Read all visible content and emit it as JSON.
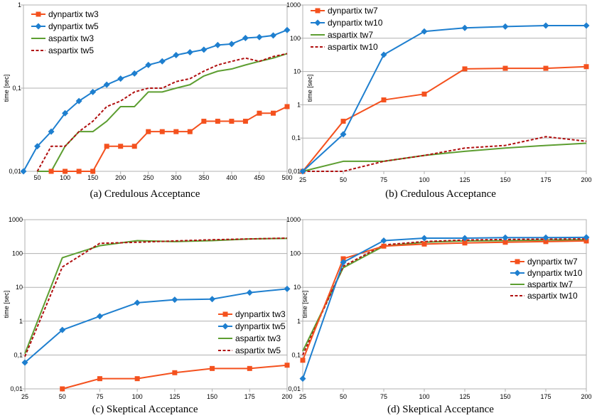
{
  "colors": {
    "dyn_a": "#f4511e",
    "dyn_b": "#1e7fcf",
    "asp_a": "#5d9e31",
    "asp_b": "#b00f0f"
  },
  "chart_data": [
    {
      "type": "line",
      "caption": "(a)  Credulous Acceptance",
      "ylabel": "time [sec]",
      "yscale": "log",
      "ylim": [
        0.01,
        1
      ],
      "yticks": [
        "0,01",
        "0,1",
        "1"
      ],
      "xlim": [
        25,
        500
      ],
      "xticks": [
        "50",
        "100",
        "150",
        "200",
        "250",
        "300",
        "350",
        "400",
        "450",
        "500"
      ],
      "legend_position": "top-left",
      "series": [
        {
          "name": "dynpartix tw3",
          "style": "square",
          "color": "#f4511e",
          "x": [
            75,
            100,
            125,
            150,
            175,
            200,
            225,
            250,
            275,
            300,
            325,
            350,
            375,
            400,
            425,
            450,
            475,
            500
          ],
          "y": [
            0.01,
            0.01,
            0.01,
            0.01,
            0.02,
            0.02,
            0.02,
            0.03,
            0.03,
            0.03,
            0.03,
            0.04,
            0.04,
            0.04,
            0.04,
            0.05,
            0.05,
            0.06
          ]
        },
        {
          "name": "dynpartix tw5",
          "style": "diamond",
          "color": "#1e7fcf",
          "x": [
            25,
            50,
            75,
            100,
            125,
            150,
            175,
            200,
            225,
            250,
            275,
            300,
            325,
            350,
            375,
            400,
            425,
            450,
            475,
            500
          ],
          "y": [
            0.01,
            0.02,
            0.03,
            0.05,
            0.07,
            0.09,
            0.11,
            0.13,
            0.15,
            0.19,
            0.21,
            0.25,
            0.27,
            0.29,
            0.33,
            0.34,
            0.4,
            0.41,
            0.43,
            0.5
          ]
        },
        {
          "name": "aspartix tw3",
          "style": "solid",
          "color": "#5d9e31",
          "x": [
            50,
            75,
            100,
            125,
            150,
            175,
            200,
            225,
            250,
            275,
            300,
            325,
            350,
            375,
            400,
            425,
            450,
            475,
            500
          ],
          "y": [
            0.01,
            0.01,
            0.02,
            0.03,
            0.03,
            0.04,
            0.06,
            0.06,
            0.09,
            0.09,
            0.1,
            0.11,
            0.14,
            0.16,
            0.17,
            0.19,
            0.21,
            0.23,
            0.26
          ]
        },
        {
          "name": "aspartix tw5",
          "style": "dash",
          "color": "#b00f0f",
          "x": [
            50,
            75,
            100,
            125,
            150,
            175,
            200,
            225,
            250,
            275,
            300,
            325,
            350,
            375,
            400,
            425,
            450,
            475,
            500
          ],
          "y": [
            0.01,
            0.02,
            0.02,
            0.03,
            0.04,
            0.06,
            0.07,
            0.09,
            0.1,
            0.1,
            0.12,
            0.13,
            0.16,
            0.19,
            0.21,
            0.23,
            0.21,
            0.24,
            0.26
          ]
        }
      ]
    },
    {
      "type": "line",
      "caption": "(b)  Credulous Acceptance",
      "ylabel": "time [sec]",
      "yscale": "log",
      "ylim": [
        0.01,
        1000
      ],
      "yticks": [
        "0,01",
        "0,1",
        "1",
        "10",
        "100",
        "1000"
      ],
      "xlim": [
        25,
        200
      ],
      "xticks": [
        "25",
        "50",
        "75",
        "100",
        "125",
        "150",
        "175",
        "200"
      ],
      "legend_position": "top-left",
      "series": [
        {
          "name": "dynpartix tw7",
          "style": "square",
          "color": "#f4511e",
          "x": [
            25,
            50,
            75,
            100,
            125,
            150,
            175,
            200
          ],
          "y": [
            0.01,
            0.32,
            1.4,
            2.1,
            12,
            12.5,
            12.5,
            14
          ]
        },
        {
          "name": "dynpartix tw10",
          "style": "diamond",
          "color": "#1e7fcf",
          "x": [
            25,
            50,
            75,
            100,
            125,
            150,
            175,
            200
          ],
          "y": [
            0.01,
            0.13,
            32,
            160,
            205,
            225,
            240,
            240
          ]
        },
        {
          "name": "aspartix tw7",
          "style": "solid",
          "color": "#5d9e31",
          "x": [
            25,
            50,
            75,
            100,
            125,
            150,
            175,
            200
          ],
          "y": [
            0.01,
            0.02,
            0.02,
            0.03,
            0.04,
            0.05,
            0.06,
            0.07
          ]
        },
        {
          "name": "aspartix tw10",
          "style": "dash",
          "color": "#b00f0f",
          "x": [
            25,
            50,
            75,
            100,
            125,
            150,
            175,
            200
          ],
          "y": [
            0.01,
            0.01,
            0.02,
            0.03,
            0.05,
            0.06,
            0.11,
            0.08
          ]
        }
      ]
    },
    {
      "type": "line",
      "caption": "(c)  Skeptical Acceptance",
      "ylabel": "time [sec]",
      "yscale": "log",
      "ylim": [
        0.01,
        1000
      ],
      "yticks": [
        "0,01",
        "0,1",
        "1",
        "10",
        "100",
        "1000"
      ],
      "xlim": [
        25,
        200
      ],
      "xticks": [
        "25",
        "50",
        "75",
        "100",
        "125",
        "150",
        "175",
        "200"
      ],
      "legend_position": "bottom-right",
      "series": [
        {
          "name": "dynpartix tw3",
          "style": "square",
          "color": "#f4511e",
          "x": [
            50,
            75,
            100,
            125,
            150,
            175,
            200
          ],
          "y": [
            0.01,
            0.02,
            0.02,
            0.03,
            0.04,
            0.04,
            0.05
          ]
        },
        {
          "name": "dynpartix tw5",
          "style": "diamond",
          "color": "#1e7fcf",
          "x": [
            25,
            50,
            75,
            100,
            125,
            150,
            175,
            200
          ],
          "y": [
            0.06,
            0.55,
            1.4,
            3.5,
            4.3,
            4.5,
            7,
            9
          ]
        },
        {
          "name": "aspartix tw3",
          "style": "solid",
          "color": "#5d9e31",
          "x": [
            25,
            50,
            75,
            100,
            125,
            150,
            175,
            200
          ],
          "y": [
            0.11,
            75,
            170,
            240,
            225,
            240,
            270,
            280
          ]
        },
        {
          "name": "aspartix tw5",
          "style": "dash",
          "color": "#b00f0f",
          "x": [
            25,
            50,
            75,
            100,
            125,
            150,
            175,
            200
          ],
          "y": [
            0.09,
            40,
            200,
            215,
            235,
            255,
            270,
            285
          ]
        }
      ]
    },
    {
      "type": "line",
      "caption": "(d)  Skeptical Acceptance",
      "ylabel": "time [sec]",
      "yscale": "log",
      "ylim": [
        0.01,
        1000
      ],
      "yticks": [
        "0,01",
        "0,1",
        "1",
        "10",
        "100",
        "1000"
      ],
      "xlim": [
        25,
        200
      ],
      "xticks": [
        "25",
        "50",
        "75",
        "100",
        "125",
        "150",
        "175",
        "200"
      ],
      "legend_position": "middle-right",
      "series": [
        {
          "name": "dynpartix tw7",
          "style": "square",
          "color": "#f4511e",
          "x": [
            25,
            50,
            75,
            100,
            125,
            150,
            175,
            200
          ],
          "y": [
            0.07,
            70,
            165,
            190,
            205,
            215,
            225,
            235
          ]
        },
        {
          "name": "dynpartix tw10",
          "style": "diamond",
          "color": "#1e7fcf",
          "x": [
            25,
            50,
            75,
            100,
            125,
            150,
            175,
            200
          ],
          "y": [
            0.02,
            55,
            240,
            285,
            285,
            295,
            295,
            300
          ]
        },
        {
          "name": "aspartix tw7",
          "style": "solid",
          "color": "#5d9e31",
          "x": [
            25,
            50,
            75,
            100,
            125,
            150,
            175,
            200
          ],
          "y": [
            0.13,
            38,
            165,
            215,
            235,
            240,
            250,
            255
          ]
        },
        {
          "name": "aspartix tw10",
          "style": "dash",
          "color": "#b00f0f",
          "x": [
            25,
            50,
            75,
            100,
            125,
            150,
            175,
            200
          ],
          "y": [
            0.1,
            42,
            180,
            225,
            250,
            260,
            265,
            270
          ]
        }
      ]
    }
  ]
}
